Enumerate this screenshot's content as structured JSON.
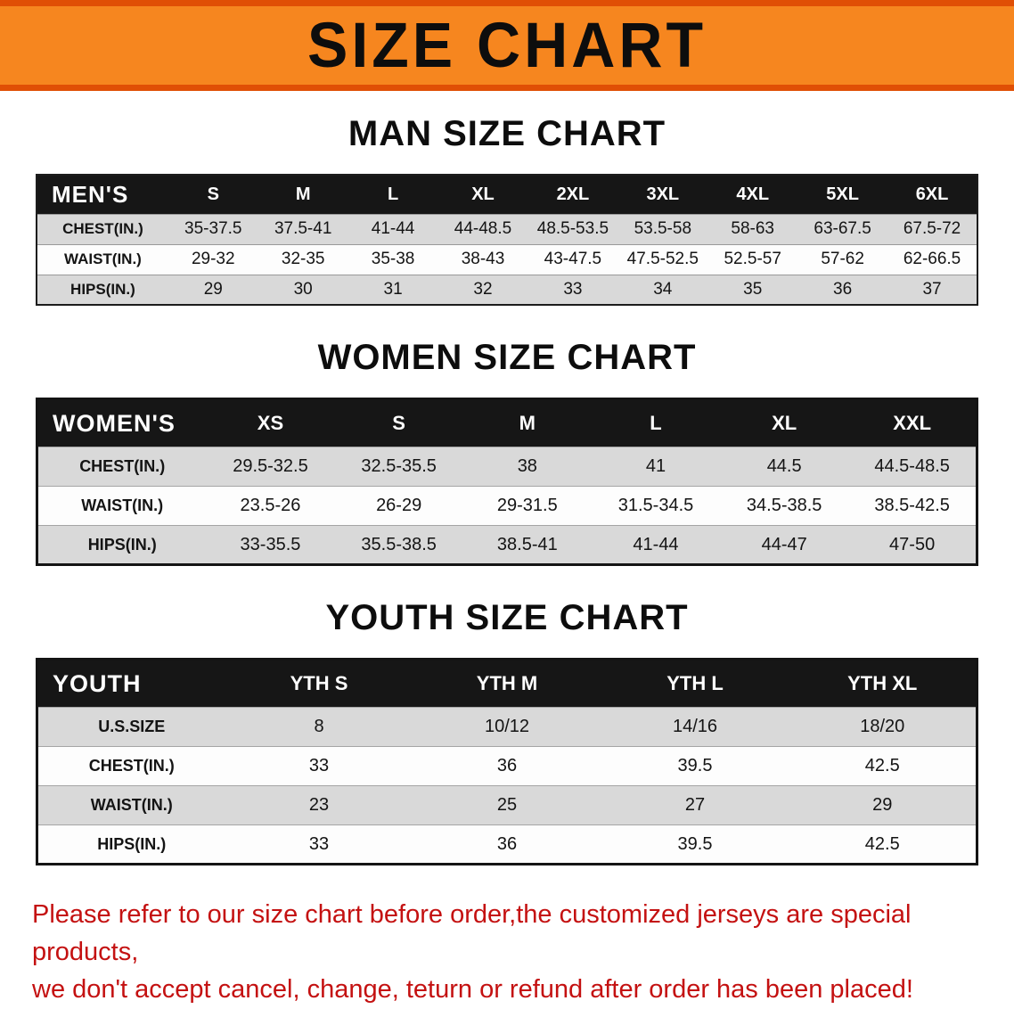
{
  "banner": {
    "title": "SIZE CHART"
  },
  "colors": {
    "banner_bg": "#f6861f",
    "banner_edge": "#e04f05",
    "table_header_bg": "#161616",
    "row_stripe": "#d9d9d9",
    "note_red": "#c41111"
  },
  "sections": [
    {
      "heading": "MAN SIZE CHART"
    },
    {
      "heading": "WOMEN SIZE CHART"
    },
    {
      "heading": "YOUTH SIZE CHART"
    }
  ],
  "tables": {
    "men": {
      "label": "MEN'S",
      "columns": [
        "S",
        "M",
        "L",
        "XL",
        "2XL",
        "3XL",
        "4XL",
        "5XL",
        "6XL"
      ],
      "rows": [
        {
          "label": "CHEST(IN.)",
          "values": [
            "35-37.5",
            "37.5-41",
            "41-44",
            "44-48.5",
            "48.5-53.5",
            "53.5-58",
            "58-63",
            "63-67.5",
            "67.5-72"
          ]
        },
        {
          "label": "WAIST(IN.)",
          "values": [
            "29-32",
            "32-35",
            "35-38",
            "38-43",
            "43-47.5",
            "47.5-52.5",
            "52.5-57",
            "57-62",
            "62-66.5"
          ]
        },
        {
          "label": "HIPS(IN.)",
          "values": [
            "29",
            "30",
            "31",
            "32",
            "33",
            "34",
            "35",
            "36",
            "37"
          ]
        }
      ]
    },
    "women": {
      "label": "WOMEN'S",
      "columns": [
        "XS",
        "S",
        "M",
        "L",
        "XL",
        "XXL"
      ],
      "rows": [
        {
          "label": "CHEST(IN.)",
          "values": [
            "29.5-32.5",
            "32.5-35.5",
            "38",
            "41",
            "44.5",
            "44.5-48.5"
          ]
        },
        {
          "label": "WAIST(IN.)",
          "values": [
            "23.5-26",
            "26-29",
            "29-31.5",
            "31.5-34.5",
            "34.5-38.5",
            "38.5-42.5"
          ]
        },
        {
          "label": "HIPS(IN.)",
          "values": [
            "33-35.5",
            "35.5-38.5",
            "38.5-41",
            "41-44",
            "44-47",
            "47-50"
          ]
        }
      ]
    },
    "youth": {
      "label": "YOUTH",
      "columns": [
        "YTH S",
        "YTH M",
        "YTH L",
        "YTH XL"
      ],
      "rows": [
        {
          "label": "U.S.SIZE",
          "values": [
            "8",
            "10/12",
            "14/16",
            "18/20"
          ]
        },
        {
          "label": "CHEST(IN.)",
          "values": [
            "33",
            "36",
            "39.5",
            "42.5"
          ]
        },
        {
          "label": "WAIST(IN.)",
          "values": [
            "23",
            "25",
            "27",
            "29"
          ]
        },
        {
          "label": "HIPS(IN.)",
          "values": [
            "33",
            "36",
            "39.5",
            "42.5"
          ]
        }
      ]
    }
  },
  "note": {
    "lines": [
      "Please refer to our size chart before order,the customized jerseys are special products,",
      "we don't accept cancel, change, teturn or refund after order has been placed!"
    ]
  }
}
